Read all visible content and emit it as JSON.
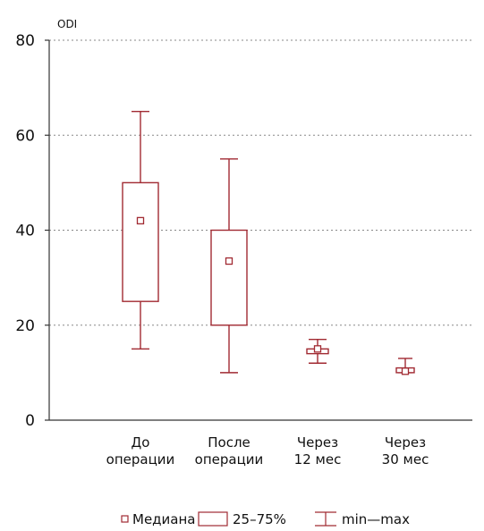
{
  "chart_data": {
    "type": "box",
    "ylabel": "ODI",
    "ylim": [
      0,
      80
    ],
    "yticks": [
      0,
      20,
      40,
      60,
      80
    ],
    "grid": true,
    "legend_position": "bottom",
    "colors": {
      "box": "#a12a32",
      "axis": "#333333",
      "grid": "#888888"
    },
    "categories": [
      [
        "До",
        "операции"
      ],
      [
        "После",
        "операции"
      ],
      [
        "Через",
        "12 мес"
      ],
      [
        "Через",
        "30 мес"
      ]
    ],
    "boxes": [
      {
        "min": 15,
        "q1": 25,
        "median": 42,
        "q3": 50,
        "max": 65
      },
      {
        "min": 10,
        "q1": 20,
        "median": 33.5,
        "q3": 40,
        "max": 55
      },
      {
        "min": 12,
        "q1": 14,
        "median": 15,
        "q3": 15,
        "max": 17
      },
      {
        "min": 10,
        "q1": 10,
        "median": 10.3,
        "q3": 11,
        "max": 13
      }
    ],
    "legend": {
      "median": "Медиана",
      "iqr": "25–75%",
      "range": "min—max"
    }
  }
}
